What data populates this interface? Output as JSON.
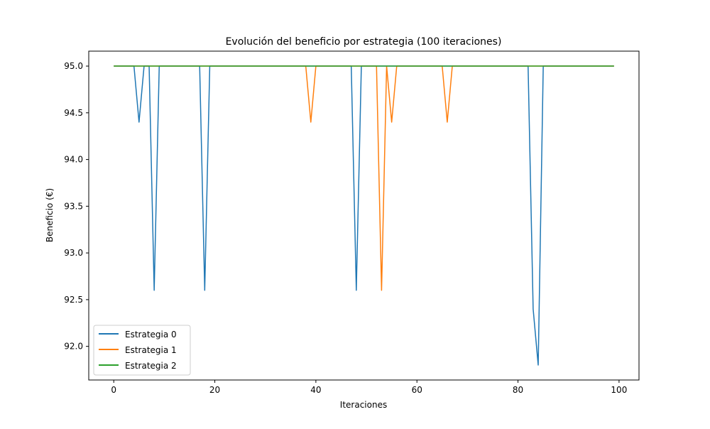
{
  "chart_data": {
    "type": "line",
    "title": "Evolución del beneficio por estrategia (100 iteraciones)",
    "xlabel": "Iteraciones",
    "ylabel": "Beneficio (€)",
    "xlim": [
      -4.95,
      103.95
    ],
    "ylim": [
      91.64,
      95.16
    ],
    "xticks": [
      0,
      20,
      40,
      60,
      80,
      100
    ],
    "xtick_labels": [
      "0",
      "20",
      "40",
      "60",
      "80",
      "100"
    ],
    "yticks": [
      92.0,
      92.5,
      93.0,
      93.5,
      94.0,
      94.5,
      95.0
    ],
    "ytick_labels": [
      "92.0",
      "92.5",
      "93.0",
      "93.5",
      "94.0",
      "94.5",
      "95.0"
    ],
    "grid": false,
    "legend_position": "lower-left",
    "x_start": 0,
    "x_end": 99,
    "baseline": 95.0,
    "series": [
      {
        "name": "Estrategia 0",
        "color": "#1f77b4",
        "deviations": [
          [
            5,
            94.4
          ],
          [
            8,
            92.6
          ],
          [
            18,
            92.6
          ],
          [
            48,
            92.6
          ],
          [
            83,
            92.4
          ],
          [
            84,
            91.8
          ]
        ]
      },
      {
        "name": "Estrategia 1",
        "color": "#ff7f0e",
        "deviations": [
          [
            39,
            94.4
          ],
          [
            53,
            92.6
          ],
          [
            55,
            94.4
          ],
          [
            66,
            94.4
          ]
        ]
      },
      {
        "name": "Estrategia 2",
        "color": "#2ca02c",
        "deviations": []
      }
    ]
  }
}
